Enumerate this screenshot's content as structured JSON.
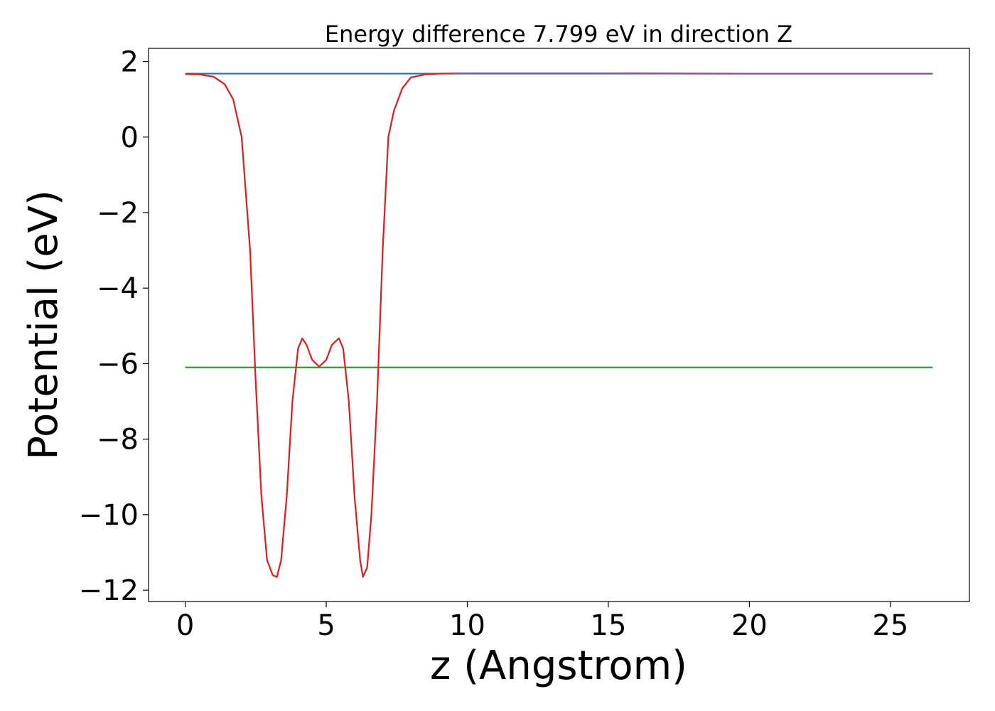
{
  "chart_data": {
    "type": "line",
    "title": "Energy difference 7.799 eV in direction Z",
    "xlabel": "z (Angstrom)",
    "ylabel": "Potential (eV)",
    "xlim": [
      -1.3,
      27.8
    ],
    "ylim": [
      -12.3,
      2.35
    ],
    "xticks": [
      0,
      5,
      10,
      15,
      20,
      25
    ],
    "xtick_labels": [
      "0",
      "5",
      "10",
      "15",
      "20",
      "25"
    ],
    "yticks": [
      2,
      0,
      -2,
      -4,
      -6,
      -8,
      -10,
      -12
    ],
    "ytick_labels": [
      "2",
      "0",
      "−2",
      "−4",
      "−6",
      "−8",
      "−10",
      "−12"
    ],
    "grid": false,
    "series": [
      {
        "color": "#1f77b4",
        "x": [
          0,
          26.5
        ],
        "y": [
          1.68,
          1.68
        ]
      },
      {
        "color": "#2ca02c",
        "x": [
          0,
          26.5
        ],
        "y": [
          -6.1,
          -6.1
        ]
      },
      {
        "color": "#e41a1c",
        "x": [
          0,
          0.5,
          1.0,
          1.4,
          1.7,
          2.0,
          2.3,
          2.5,
          2.7,
          2.9,
          3.1,
          3.25,
          3.4,
          3.6,
          3.8,
          4.0,
          4.15,
          4.3,
          4.5,
          4.75,
          5.0,
          5.2,
          5.45,
          5.6,
          5.8,
          6.0,
          6.2,
          6.3,
          6.45,
          6.6,
          6.8,
          7.0,
          7.2,
          7.4,
          7.7,
          8.0,
          8.5,
          9.0,
          10.0,
          12.0,
          15.0,
          20.0,
          26.5
        ],
        "y": [
          1.67,
          1.66,
          1.6,
          1.4,
          1.0,
          0.0,
          -3.0,
          -6.5,
          -9.5,
          -11.2,
          -11.6,
          -11.65,
          -11.2,
          -9.5,
          -7.0,
          -5.6,
          -5.33,
          -5.5,
          -5.9,
          -6.08,
          -5.9,
          -5.5,
          -5.33,
          -5.6,
          -7.0,
          -9.5,
          -11.2,
          -11.65,
          -11.4,
          -10.0,
          -7.0,
          -3.0,
          0.0,
          0.7,
          1.3,
          1.58,
          1.66,
          1.68,
          1.69,
          1.69,
          1.69,
          1.68,
          1.68
        ]
      },
      {
        "color": "#7b5aa6",
        "x": [
          9.5,
          12,
          15,
          18,
          21,
          24,
          26.5
        ],
        "y": [
          1.69,
          1.69,
          1.69,
          1.68,
          1.68,
          1.68,
          1.68
        ]
      }
    ]
  }
}
